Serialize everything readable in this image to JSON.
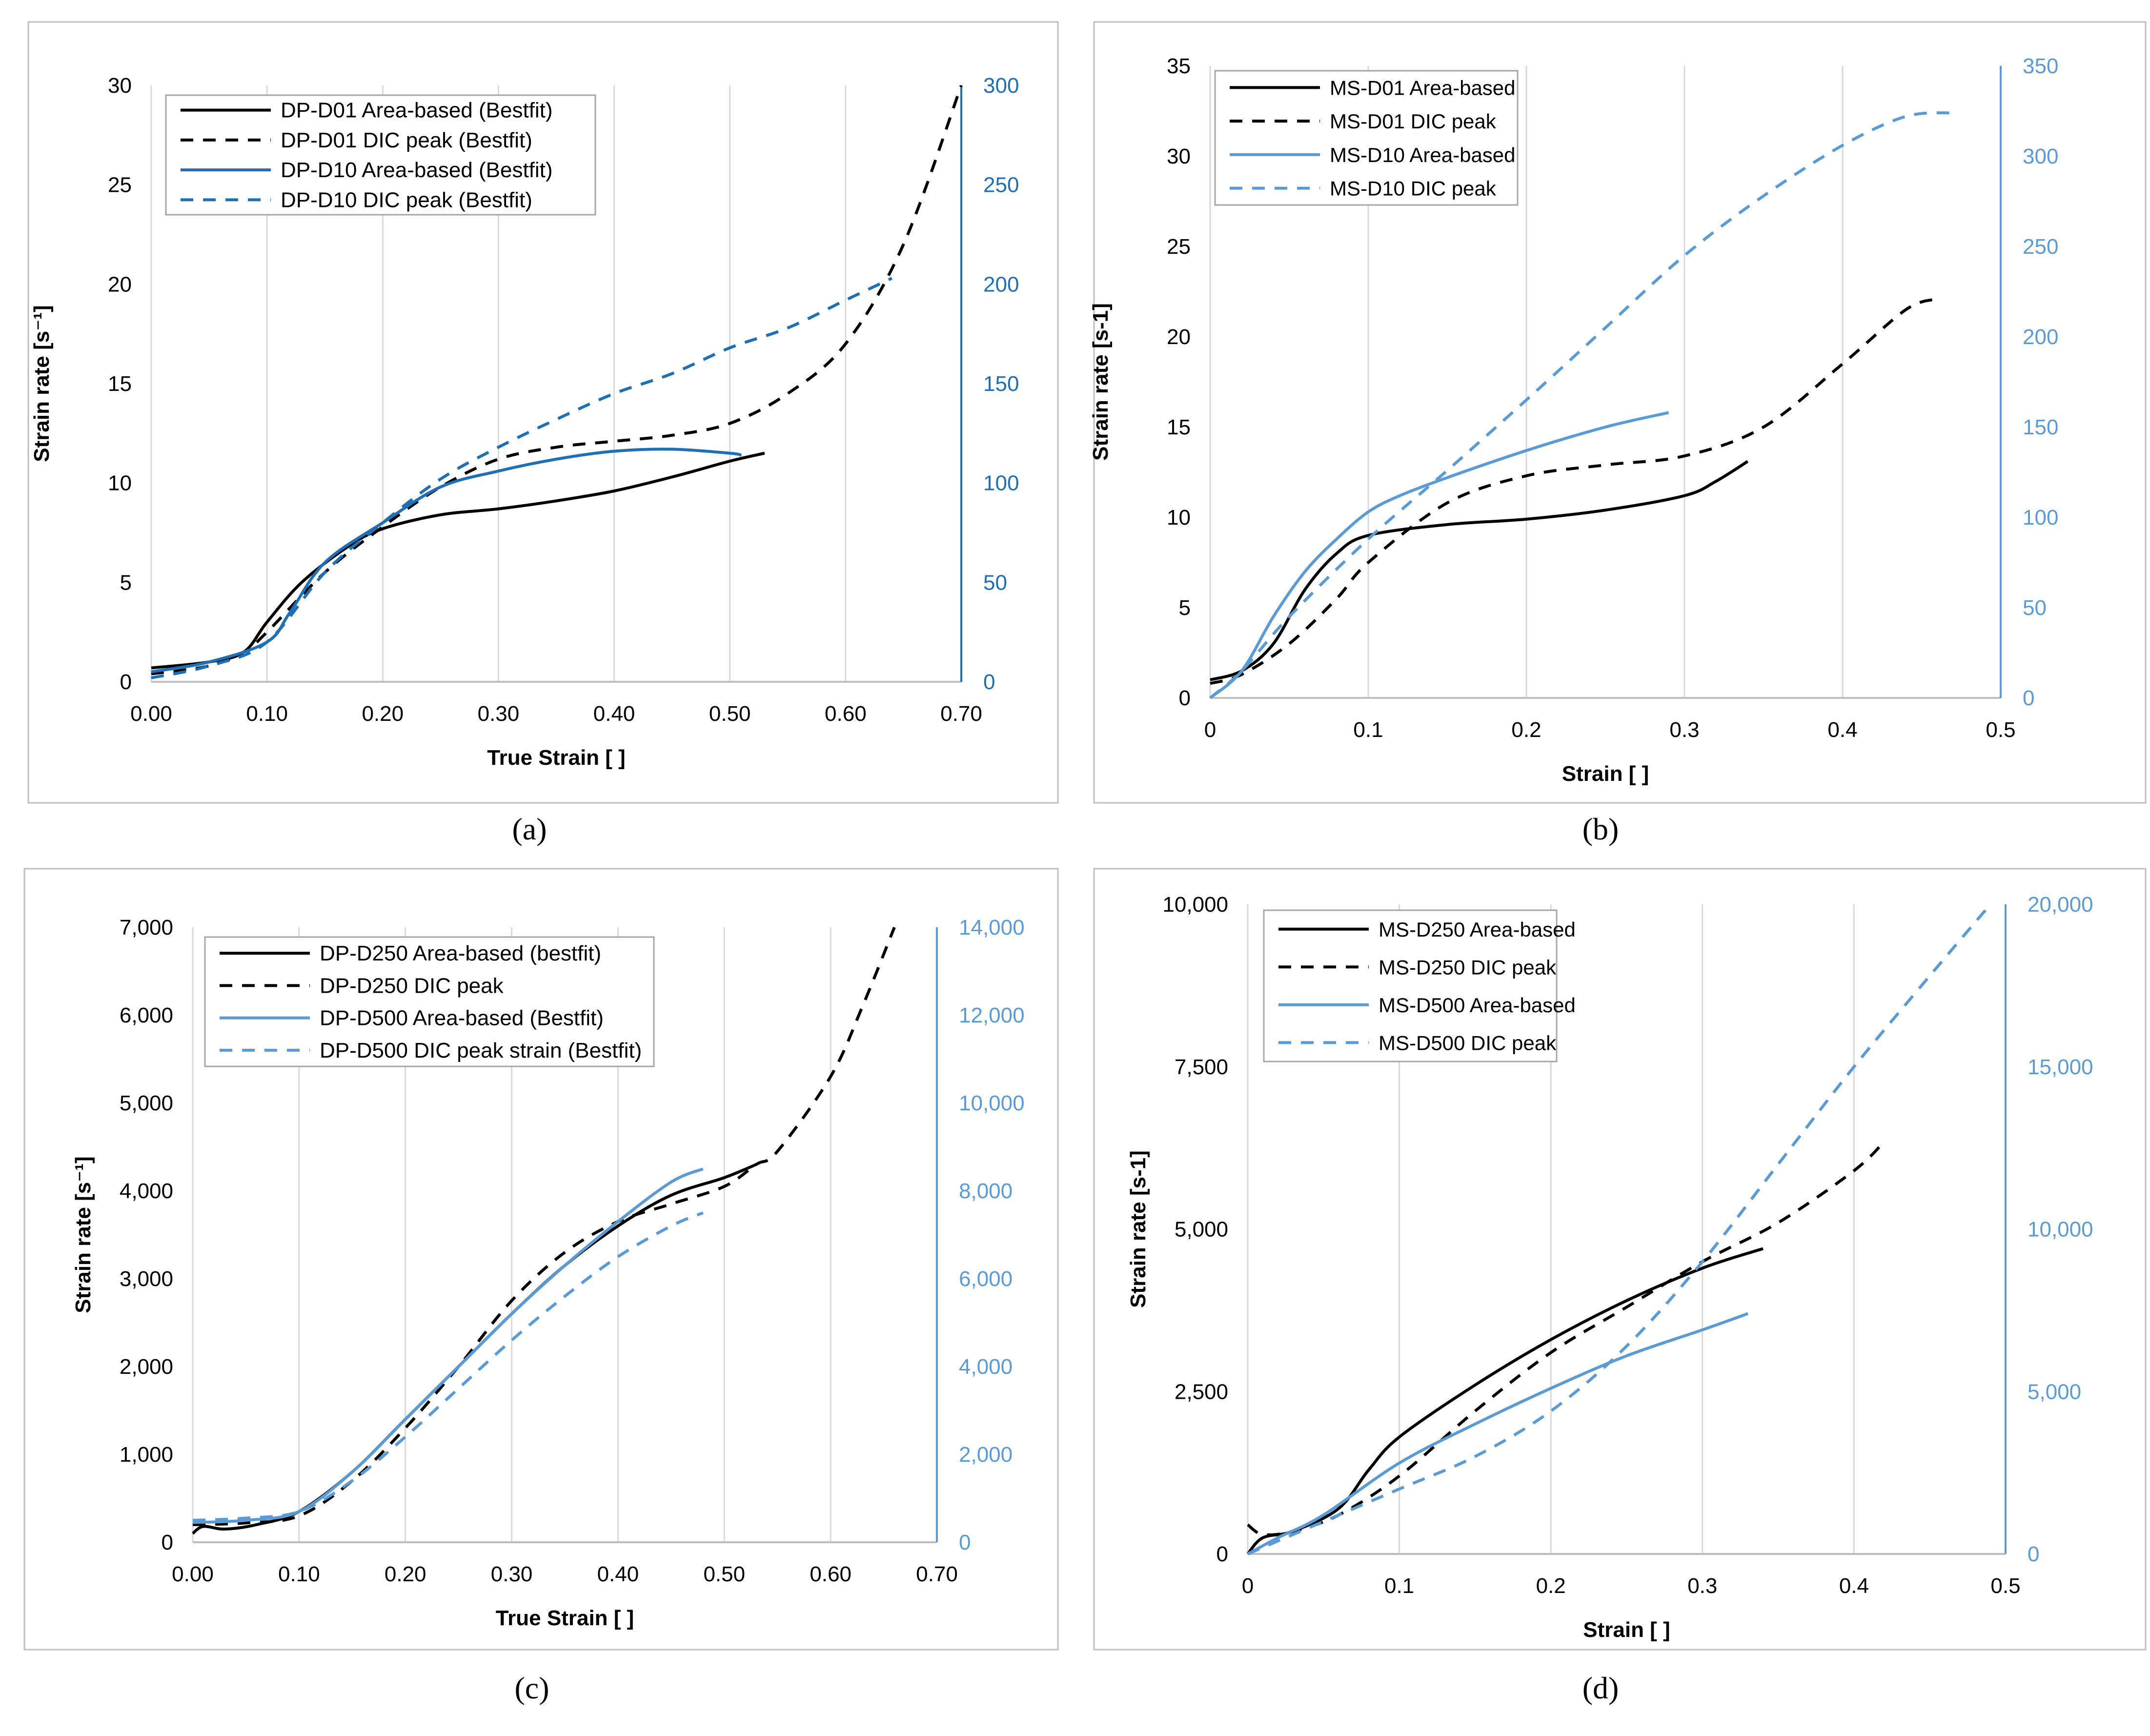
{
  "chart_data": [
    {
      "id": "a",
      "type": "line",
      "caption": "(a)",
      "xlabel": "True Strain [  ]",
      "ylabel": "Strain rate [s⁻¹]",
      "xlim": [
        0,
        0.7
      ],
      "ylim": [
        0,
        30
      ],
      "y2lim": [
        0,
        300
      ],
      "x_ticks": [
        "0.00",
        "0.10",
        "0.20",
        "0.30",
        "0.40",
        "0.50",
        "0.60",
        "0.70"
      ],
      "y_ticks": [
        "0",
        "5",
        "10",
        "15",
        "20",
        "25",
        "30"
      ],
      "y2_ticks": [
        "0",
        "50",
        "100",
        "150",
        "200",
        "250",
        "300"
      ],
      "colors": {
        "black": "#000000",
        "blue": "#1f6fb5"
      },
      "series": [
        {
          "name": "DP-D01 Area-based (Bestfit)",
          "axis": "y1",
          "color": "black",
          "dash": false,
          "points": [
            [
              0,
              0.7
            ],
            [
              0.05,
              1.0
            ],
            [
              0.08,
              1.5
            ],
            [
              0.1,
              3.0
            ],
            [
              0.13,
              5.0
            ],
            [
              0.17,
              6.8
            ],
            [
              0.2,
              7.7
            ],
            [
              0.25,
              8.4
            ],
            [
              0.3,
              8.7
            ],
            [
              0.35,
              9.1
            ],
            [
              0.4,
              9.6
            ],
            [
              0.45,
              10.3
            ],
            [
              0.5,
              11.1
            ],
            [
              0.53,
              11.5
            ]
          ]
        },
        {
          "name": "DP-D01 DIC peak (Bestfit)",
          "axis": "y1",
          "color": "black",
          "dash": true,
          "points": [
            [
              0,
              0.4
            ],
            [
              0.05,
              0.8
            ],
            [
              0.08,
              1.5
            ],
            [
              0.1,
              2.5
            ],
            [
              0.15,
              5.5
            ],
            [
              0.2,
              7.8
            ],
            [
              0.25,
              9.8
            ],
            [
              0.3,
              11.2
            ],
            [
              0.35,
              11.8
            ],
            [
              0.4,
              12.1
            ],
            [
              0.45,
              12.4
            ],
            [
              0.5,
              13.0
            ],
            [
              0.55,
              14.5
            ],
            [
              0.6,
              17.0
            ],
            [
              0.65,
              22.0
            ],
            [
              0.7,
              30.0
            ]
          ]
        },
        {
          "name": "DP-D10 Area-based (Bestfit)",
          "axis": "y2",
          "color": "blue",
          "dash": false,
          "points": [
            [
              0,
              5
            ],
            [
              0.05,
              10
            ],
            [
              0.1,
              20
            ],
            [
              0.12,
              35
            ],
            [
              0.15,
              60
            ],
            [
              0.2,
              80
            ],
            [
              0.25,
              98
            ],
            [
              0.3,
              106
            ],
            [
              0.35,
              112
            ],
            [
              0.4,
              116
            ],
            [
              0.45,
              117
            ],
            [
              0.5,
              115
            ],
            [
              0.51,
              114
            ]
          ]
        },
        {
          "name": "DP-D10 DIC peak (Bestfit)",
          "axis": "y2",
          "color": "blue",
          "dash": true,
          "points": [
            [
              0,
              2
            ],
            [
              0.05,
              8
            ],
            [
              0.1,
              20
            ],
            [
              0.15,
              55
            ],
            [
              0.2,
              80
            ],
            [
              0.25,
              102
            ],
            [
              0.3,
              118
            ],
            [
              0.35,
              132
            ],
            [
              0.4,
              145
            ],
            [
              0.45,
              155
            ],
            [
              0.5,
              168
            ],
            [
              0.55,
              178
            ],
            [
              0.6,
              192
            ],
            [
              0.64,
              203
            ]
          ]
        }
      ]
    },
    {
      "id": "b",
      "type": "line",
      "caption": "(b)",
      "xlabel": "Strain [  ]",
      "ylabel": "Strain rate [s-1]",
      "xlim": [
        0,
        0.5
      ],
      "ylim": [
        0,
        35
      ],
      "y2lim": [
        0,
        350
      ],
      "x_ticks": [
        "0",
        "0.1",
        "0.2",
        "0.3",
        "0.4",
        "0.5"
      ],
      "y_ticks": [
        "0",
        "5",
        "10",
        "15",
        "20",
        "25",
        "30",
        "35"
      ],
      "y2_ticks": [
        "0",
        "50",
        "100",
        "150",
        "200",
        "250",
        "300",
        "350"
      ],
      "colors": {
        "black": "#000000",
        "blue": "#5b9bd5"
      },
      "series": [
        {
          "name": "MS-D01 Area-based",
          "axis": "y1",
          "color": "black",
          "dash": false,
          "points": [
            [
              0,
              1.0
            ],
            [
              0.02,
              1.5
            ],
            [
              0.04,
              3.0
            ],
            [
              0.06,
              6.0
            ],
            [
              0.08,
              8.0
            ],
            [
              0.1,
              9.0
            ],
            [
              0.15,
              9.6
            ],
            [
              0.2,
              9.9
            ],
            [
              0.25,
              10.4
            ],
            [
              0.3,
              11.2
            ],
            [
              0.32,
              12.0
            ],
            [
              0.34,
              13.1
            ]
          ]
        },
        {
          "name": "MS-D01 DIC peak",
          "axis": "y1",
          "color": "black",
          "dash": true,
          "points": [
            [
              0,
              0.8
            ],
            [
              0.02,
              1.3
            ],
            [
              0.05,
              3.0
            ],
            [
              0.08,
              5.5
            ],
            [
              0.1,
              7.5
            ],
            [
              0.15,
              10.8
            ],
            [
              0.2,
              12.3
            ],
            [
              0.25,
              12.9
            ],
            [
              0.3,
              13.4
            ],
            [
              0.35,
              15.0
            ],
            [
              0.4,
              18.5
            ],
            [
              0.44,
              21.5
            ],
            [
              0.46,
              22.1
            ]
          ]
        },
        {
          "name": "MS-D10 Area-based",
          "axis": "y2",
          "color": "blue",
          "dash": false,
          "points": [
            [
              0,
              0
            ],
            [
              0.02,
              15
            ],
            [
              0.04,
              45
            ],
            [
              0.06,
              70
            ],
            [
              0.08,
              88
            ],
            [
              0.1,
              103
            ],
            [
              0.12,
              112
            ],
            [
              0.15,
              122
            ],
            [
              0.2,
              137
            ],
            [
              0.25,
              150
            ],
            [
              0.29,
              158
            ]
          ]
        },
        {
          "name": "MS-D10 DIC peak",
          "axis": "y2",
          "color": "blue",
          "dash": true,
          "points": [
            [
              0,
              0
            ],
            [
              0.02,
              15
            ],
            [
              0.05,
              45
            ],
            [
              0.1,
              88
            ],
            [
              0.15,
              126
            ],
            [
              0.2,
              165
            ],
            [
              0.25,
              205
            ],
            [
              0.3,
              245
            ],
            [
              0.35,
              278
            ],
            [
              0.4,
              306
            ],
            [
              0.44,
              322
            ],
            [
              0.47,
              324
            ]
          ]
        }
      ]
    },
    {
      "id": "c",
      "type": "line",
      "caption": "(c)",
      "xlabel": "True Strain [  ]",
      "ylabel": "Strain rate [s⁻¹]",
      "xlim": [
        0,
        0.7
      ],
      "ylim": [
        0,
        7000
      ],
      "y2lim": [
        0,
        14000
      ],
      "x_ticks": [
        "0.00",
        "0.10",
        "0.20",
        "0.30",
        "0.40",
        "0.50",
        "0.60",
        "0.70"
      ],
      "y_ticks": [
        "0",
        "1,000",
        "2,000",
        "3,000",
        "4,000",
        "5,000",
        "6,000",
        "7,000"
      ],
      "y2_ticks": [
        "0",
        "2,000",
        "4,000",
        "6,000",
        "8,000",
        "10,000",
        "12,000",
        "14,000"
      ],
      "colors": {
        "black": "#000000",
        "blue": "#5b9bd5"
      },
      "series": [
        {
          "name": "DP-D250 Area-based (bestfit)",
          "axis": "y1",
          "color": "black",
          "dash": false,
          "points": [
            [
              0,
              100
            ],
            [
              0.01,
              180
            ],
            [
              0.03,
              150
            ],
            [
              0.06,
              200
            ],
            [
              0.1,
              350
            ],
            [
              0.15,
              800
            ],
            [
              0.2,
              1400
            ],
            [
              0.25,
              2000
            ],
            [
              0.3,
              2600
            ],
            [
              0.35,
              3150
            ],
            [
              0.4,
              3600
            ],
            [
              0.45,
              3950
            ],
            [
              0.5,
              4150
            ],
            [
              0.53,
              4300
            ]
          ]
        },
        {
          "name": "DP-D250 DIC peak",
          "axis": "y1",
          "color": "black",
          "dash": true,
          "points": [
            [
              0,
              200
            ],
            [
              0.05,
              220
            ],
            [
              0.1,
              300
            ],
            [
              0.15,
              700
            ],
            [
              0.2,
              1300
            ],
            [
              0.25,
              2000
            ],
            [
              0.3,
              2750
            ],
            [
              0.35,
              3300
            ],
            [
              0.4,
              3650
            ],
            [
              0.45,
              3850
            ],
            [
              0.5,
              4050
            ],
            [
              0.53,
              4300
            ],
            [
              0.55,
              4450
            ],
            [
              0.6,
              5300
            ],
            [
              0.63,
              6100
            ],
            [
              0.66,
              7000
            ]
          ]
        },
        {
          "name": "DP-D500 Area-based (Bestfit)",
          "axis": "y2",
          "color": "blue",
          "dash": false,
          "points": [
            [
              0,
              450
            ],
            [
              0.05,
              500
            ],
            [
              0.1,
              700
            ],
            [
              0.15,
              1600
            ],
            [
              0.2,
              2800
            ],
            [
              0.25,
              4000
            ],
            [
              0.3,
              5200
            ],
            [
              0.35,
              6300
            ],
            [
              0.4,
              7300
            ],
            [
              0.45,
              8200
            ],
            [
              0.48,
              8500
            ]
          ]
        },
        {
          "name": "DP-D500 DIC peak strain (Bestfit)",
          "axis": "y2",
          "color": "blue",
          "dash": true,
          "points": [
            [
              0,
              500
            ],
            [
              0.05,
              550
            ],
            [
              0.1,
              700
            ],
            [
              0.15,
              1400
            ],
            [
              0.2,
              2400
            ],
            [
              0.25,
              3500
            ],
            [
              0.3,
              4600
            ],
            [
              0.35,
              5600
            ],
            [
              0.4,
              6500
            ],
            [
              0.45,
              7200
            ],
            [
              0.48,
              7500
            ]
          ]
        }
      ]
    },
    {
      "id": "d",
      "type": "line",
      "caption": "(d)",
      "xlabel": "Strain [  ]",
      "ylabel": "Strain rate [s-1]",
      "xlim": [
        0,
        0.5
      ],
      "ylim": [
        0,
        10000
      ],
      "y2lim": [
        0,
        20000
      ],
      "x_ticks": [
        "0",
        "0.1",
        "0.2",
        "0.3",
        "0.4",
        "0.5"
      ],
      "y_ticks": [
        "0",
        "2,500",
        "5,000",
        "7,500",
        "10,000"
      ],
      "y2_ticks": [
        "0",
        "5,000",
        "10,000",
        "15,000",
        "20,000"
      ],
      "colors": {
        "black": "#000000",
        "blue": "#5b9bd5"
      },
      "series": [
        {
          "name": "MS-D250 Area-based",
          "axis": "y1",
          "color": "black",
          "dash": false,
          "points": [
            [
              0,
              0
            ],
            [
              0.01,
              250
            ],
            [
              0.03,
              350
            ],
            [
              0.06,
              700
            ],
            [
              0.08,
              1300
            ],
            [
              0.1,
              1800
            ],
            [
              0.15,
              2600
            ],
            [
              0.2,
              3300
            ],
            [
              0.25,
              3900
            ],
            [
              0.3,
              4400
            ],
            [
              0.34,
              4700
            ]
          ]
        },
        {
          "name": "MS-D250 DIC peak",
          "axis": "y1",
          "color": "black",
          "dash": true,
          "points": [
            [
              0,
              450
            ],
            [
              0.01,
              300
            ],
            [
              0.03,
              350
            ],
            [
              0.06,
              600
            ],
            [
              0.1,
              1200
            ],
            [
              0.15,
              2200
            ],
            [
              0.2,
              3100
            ],
            [
              0.25,
              3800
            ],
            [
              0.3,
              4500
            ],
            [
              0.35,
              5100
            ],
            [
              0.4,
              5900
            ],
            [
              0.42,
              6350
            ]
          ]
        },
        {
          "name": "MS-D500 Area-based",
          "axis": "y2",
          "color": "blue",
          "dash": false,
          "points": [
            [
              0,
              0
            ],
            [
              0.02,
              500
            ],
            [
              0.05,
              1200
            ],
            [
              0.1,
              2800
            ],
            [
              0.15,
              4000
            ],
            [
              0.2,
              5100
            ],
            [
              0.25,
              6100
            ],
            [
              0.3,
              6900
            ],
            [
              0.33,
              7400
            ]
          ]
        },
        {
          "name": "MS-D500 DIC peak",
          "axis": "y2",
          "color": "blue",
          "dash": true,
          "points": [
            [
              0,
              0
            ],
            [
              0.05,
              1000
            ],
            [
              0.1,
              2000
            ],
            [
              0.15,
              3000
            ],
            [
              0.2,
              4400
            ],
            [
              0.25,
              6400
            ],
            [
              0.3,
              9000
            ],
            [
              0.35,
              12000
            ],
            [
              0.4,
              15000
            ],
            [
              0.45,
              17800
            ],
            [
              0.49,
              20000
            ]
          ]
        }
      ]
    }
  ]
}
